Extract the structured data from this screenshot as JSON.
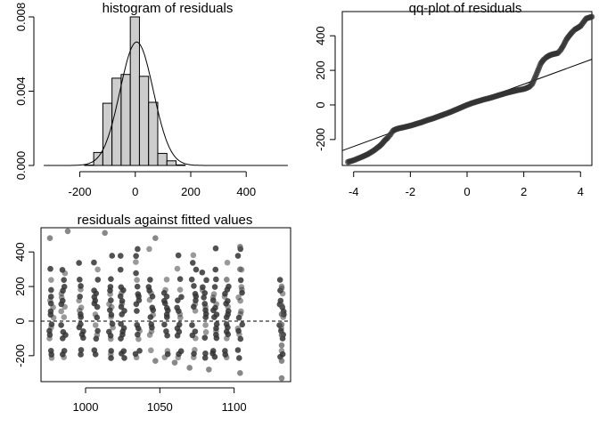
{
  "chart_data": [
    {
      "type": "bar",
      "title": "histogram of residuals",
      "xlabel": "",
      "ylabel": "",
      "xlim": [
        -340,
        560
      ],
      "ylim": [
        0,
        0.008
      ],
      "x_ticks": [
        "-200",
        "0",
        "200",
        "400"
      ],
      "y_ticks": [
        "0.000",
        "0.004",
        "0.008"
      ],
      "bin_width": 33,
      "bins": [
        {
          "start": -183,
          "end": -150,
          "density": 2e-05
        },
        {
          "start": -150,
          "end": -117,
          "density": 0.0007
        },
        {
          "start": -117,
          "end": -84,
          "density": 0.00335
        },
        {
          "start": -84,
          "end": -51,
          "density": 0.0047
        },
        {
          "start": -51,
          "end": -18,
          "density": 0.0049
        },
        {
          "start": -18,
          "end": 15,
          "density": 0.008
        },
        {
          "start": 15,
          "end": 48,
          "density": 0.0048
        },
        {
          "start": 48,
          "end": 81,
          "density": 0.0034
        },
        {
          "start": 81,
          "end": 114,
          "density": 0.00065
        },
        {
          "start": 114,
          "end": 147,
          "density": 0.00025
        },
        {
          "start": 147,
          "end": 180,
          "density": 3e-05
        }
      ],
      "normal_curve": {
        "mean": 5,
        "sd": 60
      }
    },
    {
      "type": "scatter",
      "title": "qq-plot of residuals",
      "xlabel": "",
      "ylabel": "",
      "xlim": [
        -4.4,
        4.4
      ],
      "ylim": [
        -350,
        540
      ],
      "x_ticks": [
        "-4",
        "-2",
        "0",
        "2",
        "4"
      ],
      "y_ticks": [
        "-200",
        "0",
        "200",
        "400"
      ],
      "reference_line": {
        "intercept": 0,
        "slope": 60
      },
      "points": [
        [
          -4.2,
          -330
        ],
        [
          -4.0,
          -320
        ],
        [
          -3.7,
          -300
        ],
        [
          -3.5,
          -285
        ],
        [
          -3.3,
          -265
        ],
        [
          -3.1,
          -240
        ],
        [
          -3.0,
          -225
        ],
        [
          -2.9,
          -205
        ],
        [
          -2.8,
          -190
        ],
        [
          -2.75,
          -180
        ],
        [
          -2.7,
          -170
        ],
        [
          -2.65,
          -158
        ],
        [
          -2.6,
          -148
        ],
        [
          -2.5,
          -140
        ],
        [
          -2.4,
          -135
        ],
        [
          -2.2,
          -128
        ],
        [
          -2.0,
          -120
        ],
        [
          -1.8,
          -110
        ],
        [
          -1.6,
          -100
        ],
        [
          -1.4,
          -88
        ],
        [
          -1.2,
          -78
        ],
        [
          -1.0,
          -66
        ],
        [
          -0.8,
          -54
        ],
        [
          -0.6,
          -42
        ],
        [
          -0.4,
          -28
        ],
        [
          -0.2,
          -14
        ],
        [
          0.0,
          0
        ],
        [
          0.2,
          12
        ],
        [
          0.4,
          22
        ],
        [
          0.6,
          32
        ],
        [
          0.8,
          40
        ],
        [
          1.0,
          50
        ],
        [
          1.2,
          60
        ],
        [
          1.4,
          70
        ],
        [
          1.6,
          78
        ],
        [
          1.8,
          86
        ],
        [
          2.0,
          92
        ],
        [
          2.1,
          98
        ],
        [
          2.2,
          106
        ],
        [
          2.3,
          122
        ],
        [
          2.4,
          160
        ],
        [
          2.5,
          200
        ],
        [
          2.6,
          240
        ],
        [
          2.7,
          262
        ],
        [
          2.8,
          276
        ],
        [
          2.9,
          286
        ],
        [
          3.0,
          292
        ],
        [
          3.1,
          296
        ],
        [
          3.2,
          300
        ],
        [
          3.3,
          318
        ],
        [
          3.4,
          345
        ],
        [
          3.5,
          378
        ],
        [
          3.6,
          400
        ],
        [
          3.7,
          420
        ],
        [
          3.8,
          436
        ],
        [
          3.9,
          446
        ],
        [
          4.0,
          456
        ],
        [
          4.2,
          500
        ],
        [
          4.4,
          510
        ]
      ]
    },
    {
      "type": "scatter",
      "title": "residuals against fitted values",
      "xlabel": "",
      "ylabel": "",
      "xlim": [
        970,
        1138
      ],
      "ylim": [
        -350,
        540
      ],
      "x_ticks": [
        "1000",
        "1050",
        "1100"
      ],
      "y_ticks": [
        "-200",
        "0",
        "200",
        "400"
      ],
      "reference_line": {
        "y": 0,
        "style": "dashed"
      },
      "fitted_columns": [
        977,
        985,
        997,
        1007,
        1017,
        1025,
        1035,
        1044,
        1054,
        1063,
        1073,
        1080,
        1087,
        1095,
        1104,
        1132
      ],
      "residual_levels": [
        -210,
        -190,
        -170,
        -100,
        -80,
        -60,
        -40,
        -20,
        20,
        40,
        60,
        80,
        100,
        120,
        140,
        160,
        180,
        200,
        240,
        280,
        300,
        340,
        380,
        420
      ],
      "isolated_points": [
        [
          976,
          480
        ],
        [
          988,
          520
        ],
        [
          1013,
          510
        ],
        [
          1047,
          480
        ],
        [
          1095,
          240
        ],
        [
          1104,
          430
        ],
        [
          1104,
          300
        ],
        [
          1104,
          -300
        ],
        [
          1132,
          -330
        ],
        [
          1132,
          -230
        ],
        [
          1132,
          190
        ],
        [
          1132,
          90
        ],
        [
          1132,
          40
        ],
        [
          1132,
          -20
        ],
        [
          1132,
          -80
        ],
        [
          1132,
          -140
        ],
        [
          1070,
          -270
        ],
        [
          1083,
          -280
        ],
        [
          1047,
          -230
        ],
        [
          1060,
          -240
        ]
      ]
    }
  ]
}
